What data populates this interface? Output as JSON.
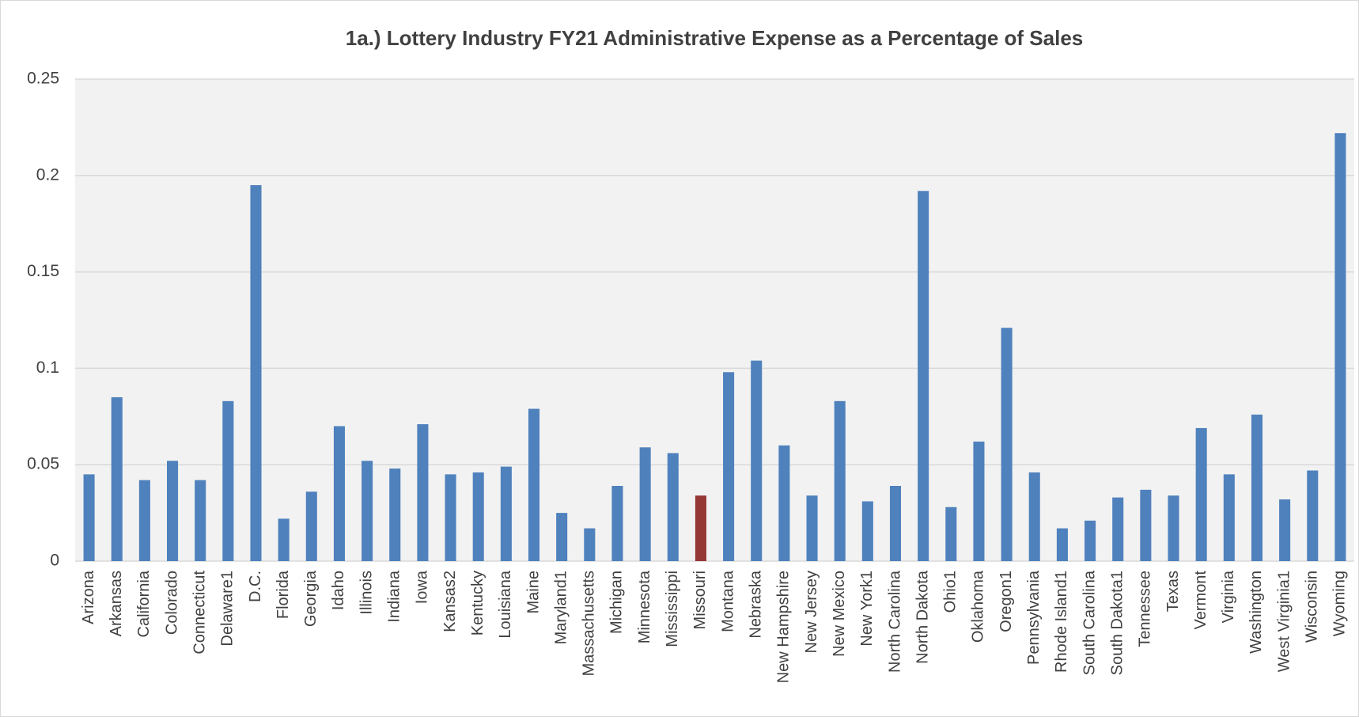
{
  "chart_data": {
    "type": "bar",
    "title": "1a.)  Lottery Industry FY21 Administrative Expense as a Percentage of Sales",
    "categories": [
      "Arizona",
      "Arkansas",
      "California",
      "Colorado",
      "Connecticut",
      "Delaware1",
      "D.C.",
      "Florida",
      "Georgia",
      "Idaho",
      "Illinois",
      "Indiana",
      "Iowa",
      "Kansas2",
      "Kentucky",
      "Louisiana",
      "Maine",
      "Maryland1",
      "Massachusetts",
      "Michigan",
      "Minnesota",
      "Mississippi",
      "Missouri",
      "Montana",
      "Nebraska",
      "New Hampshire",
      "New Jersey",
      "New Mexico",
      "New York1",
      "North Carolina",
      "North Dakota",
      "Ohio1",
      "Oklahoma",
      "Oregon1",
      "Pennsylvania",
      "Rhode Island1",
      "South Carolina",
      "South Dakota1",
      "Tennessee",
      "Texas",
      "Vermont",
      "Virginia",
      "Washington",
      "West Virginia1",
      "Wisconsin",
      "Wyoming"
    ],
    "values": [
      0.045,
      0.085,
      0.042,
      0.052,
      0.042,
      0.083,
      0.195,
      0.022,
      0.036,
      0.07,
      0.052,
      0.048,
      0.071,
      0.045,
      0.046,
      0.049,
      0.079,
      0.025,
      0.017,
      0.039,
      0.059,
      0.056,
      0.034,
      0.098,
      0.104,
      0.06,
      0.034,
      0.083,
      0.031,
      0.039,
      0.192,
      0.028,
      0.062,
      0.121,
      0.046,
      0.017,
      0.021,
      0.033,
      0.037,
      0.034,
      0.069,
      0.045,
      0.076,
      0.032,
      0.047,
      0.222
    ],
    "colors": [
      "#4f81bd",
      "#4f81bd",
      "#4f81bd",
      "#4f81bd",
      "#4f81bd",
      "#4f81bd",
      "#4f81bd",
      "#4f81bd",
      "#4f81bd",
      "#4f81bd",
      "#4f81bd",
      "#4f81bd",
      "#4f81bd",
      "#4f81bd",
      "#4f81bd",
      "#4f81bd",
      "#4f81bd",
      "#4f81bd",
      "#4f81bd",
      "#4f81bd",
      "#4f81bd",
      "#4f81bd",
      "#953735",
      "#4f81bd",
      "#4f81bd",
      "#4f81bd",
      "#4f81bd",
      "#4f81bd",
      "#4f81bd",
      "#4f81bd",
      "#4f81bd",
      "#4f81bd",
      "#4f81bd",
      "#4f81bd",
      "#4f81bd",
      "#4f81bd",
      "#4f81bd",
      "#4f81bd",
      "#4f81bd",
      "#4f81bd",
      "#4f81bd",
      "#4f81bd",
      "#4f81bd",
      "#4f81bd",
      "#4f81bd",
      "#4f81bd"
    ],
    "ylim": [
      0,
      0.25
    ],
    "yticks": [
      0,
      0.05,
      0.1,
      0.15,
      0.2,
      0.25
    ],
    "grid": true
  }
}
